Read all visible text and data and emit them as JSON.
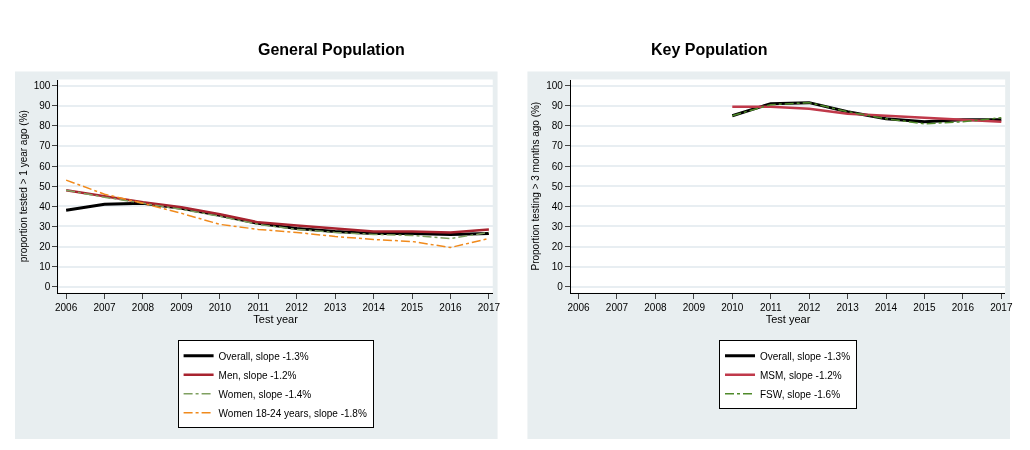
{
  "chart_data": [
    {
      "type": "line",
      "title": "General Population",
      "xlabel": "Test year",
      "ylabel": "proportion tested > 1 year ago (%)",
      "x": [
        2006,
        2007,
        2008,
        2009,
        2010,
        2011,
        2012,
        2013,
        2014,
        2015,
        2016,
        2017
      ],
      "series": [
        {
          "name": "Overall, slope -1.3%",
          "color": "#000000",
          "line_style": "solid",
          "values": [
            38,
            41,
            41.5,
            39,
            35.5,
            31.5,
            29,
            27.5,
            26.5,
            26.5,
            26,
            26.5
          ]
        },
        {
          "name": "Men, slope -1.2%",
          "color": "#a8232f",
          "line_style": "solid",
          "values": [
            48,
            45,
            42,
            39.5,
            36,
            32,
            30.5,
            29,
            27.5,
            27.5,
            27,
            28.5
          ]
        },
        {
          "name": "Women, slope -1.4%",
          "color": "#7fa060",
          "line_style": "dashdot",
          "values": [
            48,
            44.5,
            41.5,
            38.5,
            35,
            31,
            28.5,
            27,
            26,
            25.5,
            24,
            27
          ]
        },
        {
          "name": "Women 18-24 years, slope -1.8%",
          "color": "#f08a1c",
          "line_style": "dashdot",
          "values": [
            53,
            46,
            41.5,
            36.5,
            31,
            28.5,
            27,
            25,
            23.5,
            22.5,
            19.5,
            24
          ]
        }
      ],
      "xlim": [
        2005.8,
        2017.1
      ],
      "xticks": [
        2006,
        2007,
        2008,
        2009,
        2010,
        2011,
        2012,
        2013,
        2014,
        2015,
        2016,
        2017
      ],
      "ylim": [
        -3,
        103
      ],
      "yticks": [
        0,
        10,
        20,
        30,
        40,
        50,
        60,
        70,
        80,
        90,
        100
      ],
      "grid": "y",
      "legend": "bottom"
    },
    {
      "type": "line",
      "title": "Key Population",
      "xlabel": "Test year",
      "ylabel": "Proportion testing > 3 months ago (%)",
      "x": [
        2010,
        2011,
        2012,
        2013,
        2014,
        2015,
        2016,
        2017
      ],
      "series": [
        {
          "name": "Overall, slope -1.3%",
          "color": "#000000",
          "line_style": "solid",
          "values": [
            85,
            91,
            91.5,
            87,
            83.5,
            82,
            83,
            83
          ]
        },
        {
          "name": "MSM, slope -1.2%",
          "color": "#c0394a",
          "line_style": "solid",
          "values": [
            89.5,
            89.5,
            88.5,
            86,
            85,
            84,
            83,
            82
          ]
        },
        {
          "name": "FSW, slope -1.6%",
          "color": "#4f8a2a",
          "line_style": "dashdot",
          "values": [
            85,
            90.5,
            91.5,
            87,
            83.5,
            81,
            82,
            84
          ]
        }
      ],
      "xlim": [
        2005.8,
        2017.1
      ],
      "xticks": [
        2006,
        2007,
        2008,
        2009,
        2010,
        2011,
        2012,
        2013,
        2014,
        2015,
        2016,
        2017
      ],
      "ylim": [
        -3,
        103
      ],
      "yticks": [
        0,
        10,
        20,
        30,
        40,
        50,
        60,
        70,
        80,
        90,
        100
      ],
      "grid": "y",
      "legend": "bottom"
    }
  ]
}
